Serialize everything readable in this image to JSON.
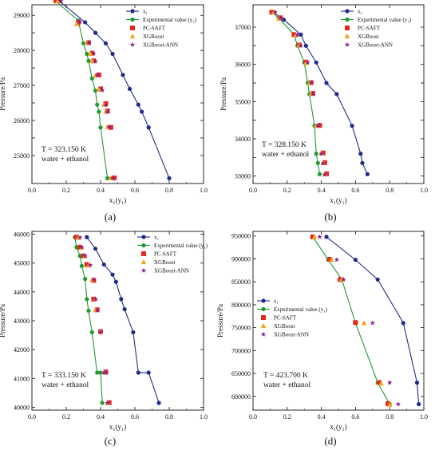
{
  "colors": {
    "x1": "#1f2b8c",
    "exp": "#1f9a2e",
    "pcsaft": "#e8261c",
    "xgboost": "#f7a21b",
    "xgbann": "#8a1c9c"
  },
  "chart_data": [
    {
      "type": "scatter",
      "panel_label": "(a)",
      "annotation_T": "T = 323.150 K",
      "annotation_sys": "water + ethanol",
      "xlabel": "x₁(y₁)",
      "ylabel": "Pressure/Pa",
      "xlim": [
        0,
        1
      ],
      "ylim": [
        24200,
        29300
      ],
      "xticks": [
        "0.0",
        "0.2",
        "0.4",
        "0.6",
        "0.8",
        "1.0"
      ],
      "yticks": [
        25000,
        25500,
        26000,
        26500,
        27000,
        27500,
        28000,
        28500,
        29000
      ],
      "ytick_labels": [
        "25000",
        "",
        "26000",
        "",
        "27000",
        "",
        "28000",
        "",
        "29000"
      ],
      "legend": [
        "x₁",
        "Experimental value (y₁)",
        "PC-SAFT",
        "XGBoost",
        "XGBoost-ANN"
      ],
      "legend_position": "top-right",
      "series": [
        {
          "name": "x₁",
          "x": [
            0.16,
            0.31,
            0.37,
            0.43,
            0.47,
            0.53,
            0.57,
            0.62,
            0.64,
            0.68,
            0.8
          ],
          "y": [
            29400,
            28800,
            28500,
            28200,
            27900,
            27300,
            26900,
            26450,
            26250,
            25800,
            24350
          ]
        },
        {
          "name": "Experimental value (y₁)",
          "x": [
            0.14,
            0.27,
            0.3,
            0.32,
            0.33,
            0.35,
            0.37,
            0.38,
            0.39,
            0.4,
            0.44
          ],
          "y": [
            29400,
            28850,
            28200,
            27900,
            27700,
            27200,
            26850,
            26450,
            26250,
            25800,
            24350
          ]
        },
        {
          "name": "PC-SAFT",
          "x": [
            0.14,
            0.27,
            0.33,
            0.35,
            0.36,
            0.39,
            0.4,
            0.43,
            0.44,
            0.46,
            0.48
          ],
          "y": [
            29420,
            28800,
            28220,
            27920,
            27700,
            27300,
            26900,
            26480,
            26270,
            25800,
            24360
          ]
        },
        {
          "name": "XGBoost",
          "x": [
            0.15,
            0.26,
            0.32,
            0.34,
            0.35,
            0.37,
            0.39,
            0.42,
            0.43,
            0.44,
            0.46
          ],
          "y": [
            29400,
            28750,
            28220,
            27900,
            27700,
            27280,
            26880,
            26450,
            26250,
            25820,
            24360
          ]
        },
        {
          "name": "XGBoost-ANN",
          "x": [
            0.17,
            0.28,
            0.33,
            0.36,
            0.37,
            0.38,
            0.41,
            0.43,
            0.44,
            0.45,
            0.47
          ],
          "y": [
            29400,
            28820,
            28210,
            27910,
            27690,
            27290,
            26860,
            26440,
            26240,
            25810,
            24350
          ]
        }
      ]
    },
    {
      "type": "scatter",
      "panel_label": "(b)",
      "annotation_T": "T = 328.150 K",
      "annotation_sys": "water + ethanol",
      "xlabel": "x₁(y₁)",
      "ylabel": "Pressure/Pa",
      "xlim": [
        0,
        1
      ],
      "ylim": [
        32800,
        37600
      ],
      "xticks": [
        "0.0",
        "0.2",
        "0.4",
        "0.6",
        "0.8",
        "1.0"
      ],
      "yticks": [
        33000,
        33500,
        34000,
        34500,
        35000,
        35500,
        36000,
        36500,
        37000
      ],
      "ytick_labels": [
        "33000",
        "",
        "34000",
        "",
        "35000",
        "",
        "36000",
        "",
        "37000"
      ],
      "legend": [
        "x₁",
        "Experimental value (y₁)",
        "PC-SAFT",
        "XGBoost",
        "XGBoost-ANN"
      ],
      "legend_position": "top-right",
      "series": [
        {
          "name": "x₁",
          "x": [
            0.12,
            0.18,
            0.28,
            0.31,
            0.37,
            0.43,
            0.49,
            0.58,
            0.63,
            0.64,
            0.67
          ],
          "y": [
            37400,
            37200,
            36800,
            36500,
            36050,
            35500,
            35200,
            34350,
            33600,
            33350,
            33050
          ]
        },
        {
          "name": "Experimental value (y₁)",
          "x": [
            0.11,
            0.15,
            0.24,
            0.26,
            0.3,
            0.32,
            0.33,
            0.36,
            0.37,
            0.38,
            0.39
          ],
          "y": [
            37400,
            37250,
            36800,
            36500,
            36050,
            35500,
            35200,
            34350,
            33600,
            33350,
            33050
          ]
        },
        {
          "name": "PC-SAFT",
          "x": [
            0.11,
            0.16,
            0.24,
            0.27,
            0.31,
            0.34,
            0.35,
            0.39,
            0.41,
            0.42,
            0.43
          ],
          "y": [
            37400,
            37250,
            36800,
            36520,
            36060,
            35510,
            35220,
            34360,
            33620,
            33360,
            33060
          ]
        },
        {
          "name": "XGBoost",
          "x": [
            0.12,
            0.15,
            0.25,
            0.27,
            0.31,
            0.33,
            0.34,
            0.37,
            0.4,
            0.41,
            0.42
          ],
          "y": [
            37390,
            37230,
            36780,
            36510,
            36040,
            35500,
            35210,
            34350,
            33610,
            33350,
            33050
          ]
        },
        {
          "name": "XGBoost-ANN",
          "x": [
            0.13,
            0.16,
            0.26,
            0.28,
            0.32,
            0.34,
            0.35,
            0.38,
            0.4,
            0.41,
            0.42
          ],
          "y": [
            37400,
            37240,
            36790,
            36500,
            36050,
            35500,
            35200,
            34350,
            33600,
            33340,
            33040
          ]
        }
      ]
    },
    {
      "type": "scatter",
      "panel_label": "(c)",
      "annotation_T": "T = 333.150 K",
      "annotation_sys": "water + ethanol",
      "xlabel": "x₁(y₁)",
      "ylabel": "Pressure/Pa",
      "xlim": [
        0,
        1
      ],
      "ylim": [
        39900,
        46100
      ],
      "xticks": [
        "0.0",
        "0.2",
        "0.4",
        "0.6",
        "0.8",
        "1.0"
      ],
      "yticks": [
        40000,
        41000,
        42000,
        43000,
        44000,
        45000,
        46000
      ],
      "ytick_labels": [
        "40000",
        "41000",
        "42000",
        "43000",
        "44000",
        "45000",
        "46000"
      ],
      "legend": [
        "x₁",
        "Experimental value (y₁)",
        "PC-SAFT",
        "XGBoost",
        "XGBoost-ANN"
      ],
      "legend_position": "top-right",
      "series": [
        {
          "name": "x₁",
          "x": [
            0.32,
            0.37,
            0.42,
            0.47,
            0.49,
            0.52,
            0.54,
            0.59,
            0.62,
            0.68,
            0.74
          ],
          "y": [
            45900,
            45500,
            44950,
            44600,
            44350,
            43750,
            43400,
            42600,
            41200,
            41200,
            40150
          ]
        },
        {
          "name": "Experimental value (y₁)",
          "x": [
            0.25,
            0.26,
            0.28,
            0.29,
            0.31,
            0.32,
            0.33,
            0.35,
            0.38,
            0.4,
            0.41
          ],
          "y": [
            45900,
            45550,
            45250,
            44900,
            44450,
            43750,
            43350,
            42600,
            41200,
            41200,
            40150
          ]
        },
        {
          "name": "PC-SAFT",
          "x": [
            0.26,
            0.28,
            0.3,
            0.32,
            0.36,
            0.36,
            0.38,
            0.4,
            0.43,
            0.43,
            0.45
          ],
          "y": [
            45900,
            45550,
            45250,
            44950,
            44400,
            43750,
            43380,
            42620,
            41220,
            41220,
            40160
          ]
        },
        {
          "name": "XGBoost",
          "x": [
            0.27,
            0.29,
            0.31,
            0.33,
            0.35,
            0.37,
            0.37,
            0.4,
            0.42,
            0.42,
            0.44
          ],
          "y": [
            45880,
            45540,
            45240,
            44920,
            44420,
            43760,
            43370,
            42610,
            41210,
            41210,
            40150
          ]
        },
        {
          "name": "XGBoost-ANN",
          "x": [
            0.28,
            0.29,
            0.31,
            0.34,
            0.36,
            0.37,
            0.38,
            0.4,
            0.42,
            0.43,
            0.44
          ],
          "y": [
            45890,
            45550,
            45250,
            44930,
            44430,
            43750,
            43360,
            42600,
            41200,
            41200,
            40150
          ]
        }
      ]
    },
    {
      "type": "scatter",
      "panel_label": "(d)",
      "annotation_T": "T = 423.700 K",
      "annotation_sys": "water + ethanol",
      "xlabel": "x₁(y₁)",
      "ylabel": "Pressure/Pa",
      "xlim": [
        0,
        1
      ],
      "ylim": [
        570000,
        960000
      ],
      "xticks": [
        "0.0",
        "0.2",
        "0.4",
        "0.6",
        "0.8",
        "1.0"
      ],
      "yticks": [
        600000,
        650000,
        700000,
        750000,
        800000,
        850000,
        900000,
        950000
      ],
      "ytick_labels": [
        "600000",
        "650000",
        "700000",
        "750000",
        "800000",
        "850000",
        "900000",
        "950000"
      ],
      "legend": [
        "x₁",
        "Experimental value (y₁)",
        "PC-SAFT",
        "XGBoost",
        "XGBoost-ANN"
      ],
      "legend_position": "top-left",
      "series": [
        {
          "name": "x₁",
          "x": [
            0.43,
            0.6,
            0.73,
            0.88,
            0.96,
            0.97
          ],
          "y": [
            948000,
            898000,
            855000,
            760000,
            630000,
            583000
          ]
        },
        {
          "name": "Experimental value (y₁)",
          "x": [
            0.35,
            0.44,
            0.52,
            0.6,
            0.73,
            0.8
          ],
          "y": [
            948000,
            898000,
            855000,
            760000,
            630000,
            583000
          ]
        },
        {
          "name": "PC-SAFT",
          "x": [
            0.35,
            0.45,
            0.51,
            0.6,
            0.74,
            0.79
          ],
          "y": [
            948000,
            899000,
            855000,
            761000,
            630000,
            584000
          ]
        },
        {
          "name": "XGBoost",
          "x": [
            0.36,
            0.46,
            0.52,
            0.65,
            0.75,
            0.8
          ],
          "y": [
            948000,
            898000,
            856000,
            760000,
            628000,
            582000
          ]
        },
        {
          "name": "XGBoost-ANN",
          "x": [
            0.39,
            0.49,
            0.53,
            0.7,
            0.8,
            0.85
          ],
          "y": [
            948000,
            898000,
            855000,
            760000,
            630000,
            583000
          ]
        }
      ]
    }
  ]
}
